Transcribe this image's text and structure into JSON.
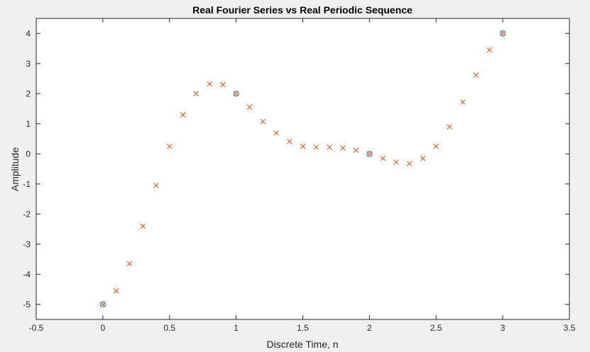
{
  "chart_data": {
    "type": "scatter",
    "title": "Real Fourier Series vs Real Periodic Sequence",
    "xlabel": "Discrete Time, n",
    "ylabel": "Amplitude",
    "xlim": [
      -0.5,
      3.5
    ],
    "ylim": [
      -5.5,
      4.5
    ],
    "xticks": [
      -0.5,
      0,
      0.5,
      1,
      1.5,
      2,
      2.5,
      3,
      3.5
    ],
    "xtick_labels": [
      "-0.5",
      "0",
      "0.5",
      "1",
      "1.5",
      "2",
      "2.5",
      "3",
      "3.5"
    ],
    "yticks": [
      4,
      3,
      2,
      1,
      0,
      -1,
      -2,
      -3,
      -4,
      -5
    ],
    "ytick_labels": [
      "4",
      "3",
      "2",
      "1",
      "0",
      "-1",
      "-2",
      "-3",
      "-4",
      "-5"
    ],
    "grid": false,
    "legend": "none",
    "series": [
      {
        "marker": "o",
        "color": "#0072bd",
        "x": [
          0,
          1,
          2,
          3
        ],
        "y": [
          -5,
          2,
          0,
          4
        ]
      },
      {
        "marker": "x",
        "color": "#d95319",
        "x": [
          0,
          0.1,
          0.2,
          0.3,
          0.4,
          0.5,
          0.6,
          0.7,
          0.8,
          0.9,
          1.0,
          1.1,
          1.2,
          1.3,
          1.4,
          1.5,
          1.6,
          1.7,
          1.8,
          1.9,
          2.0,
          2.1,
          2.2,
          2.3,
          2.4,
          2.5,
          2.6,
          2.7,
          2.8,
          2.9,
          3.0
        ],
        "y": [
          -5.0,
          -4.55,
          -3.65,
          -2.4,
          -1.05,
          0.25,
          1.3,
          2.0,
          2.33,
          2.3,
          2.0,
          1.55,
          1.08,
          0.69,
          0.41,
          0.25,
          0.22,
          0.22,
          0.19,
          0.12,
          0.0,
          -0.15,
          -0.28,
          -0.32,
          -0.15,
          0.25,
          0.9,
          1.72,
          2.62,
          3.45,
          4.0
        ]
      }
    ]
  }
}
